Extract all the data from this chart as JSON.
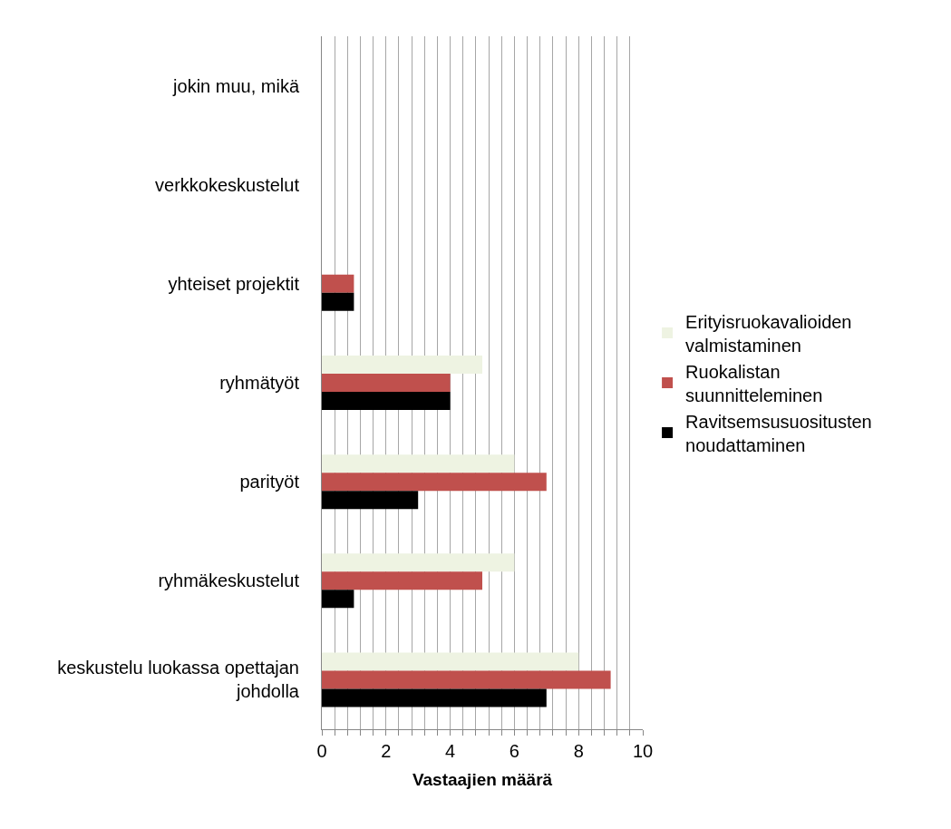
{
  "chart_data": {
    "type": "bar",
    "orientation": "horizontal",
    "xlabel": "Vastaajien määrä",
    "categories": [
      "jokin muu, mikä",
      "verkkokeskustelut",
      "yhteiset projektit",
      "ryhmätyöt",
      "parityöt",
      "ryhmäkeskustelut",
      "keskustelu luokassa opettajan johdolla"
    ],
    "series": [
      {
        "name": "Erityisruokavalioiden valmistaminen",
        "color": "#eef3e2",
        "values": [
          0,
          0,
          0,
          5,
          6,
          6,
          8
        ]
      },
      {
        "name": "Ruokalistan suunnitteleminen",
        "color": "#c0504d",
        "values": [
          0,
          0,
          1,
          4,
          7,
          5,
          9
        ]
      },
      {
        "name": "Ravitsemsusuositusten noudattaminen",
        "color": "#000000",
        "values": [
          0,
          0,
          1,
          4,
          3,
          1,
          7
        ]
      }
    ],
    "xlim": [
      0,
      10
    ],
    "xticks": [
      0,
      {
        "value": 0.4,
        "label": null
      },
      {
        "value": 0.8,
        "label": null
      },
      {
        "value": 1.2,
        "label": null
      },
      {
        "value": 1.6,
        "label": null
      },
      2,
      {
        "value": 2.4,
        "label": null
      },
      {
        "value": 2.8,
        "label": null
      },
      {
        "value": 3.2,
        "label": null
      },
      {
        "value": 3.6,
        "label": null
      },
      4,
      {
        "value": 4.4,
        "label": null
      },
      {
        "value": 4.8,
        "label": null
      },
      {
        "value": 5.2,
        "label": null
      },
      {
        "value": 5.6,
        "label": null
      },
      6,
      {
        "value": 6.4,
        "label": null
      },
      {
        "value": 6.8,
        "label": null
      },
      {
        "value": 7.2,
        "label": null
      },
      {
        "value": 7.6,
        "label": null
      },
      8,
      {
        "value": 8.4,
        "label": null
      },
      {
        "value": 8.8,
        "label": null
      },
      {
        "value": 9.2,
        "label": null
      },
      {
        "value": 9.6,
        "label": null
      },
      10
    ],
    "grid": "x",
    "legend": "right"
  }
}
